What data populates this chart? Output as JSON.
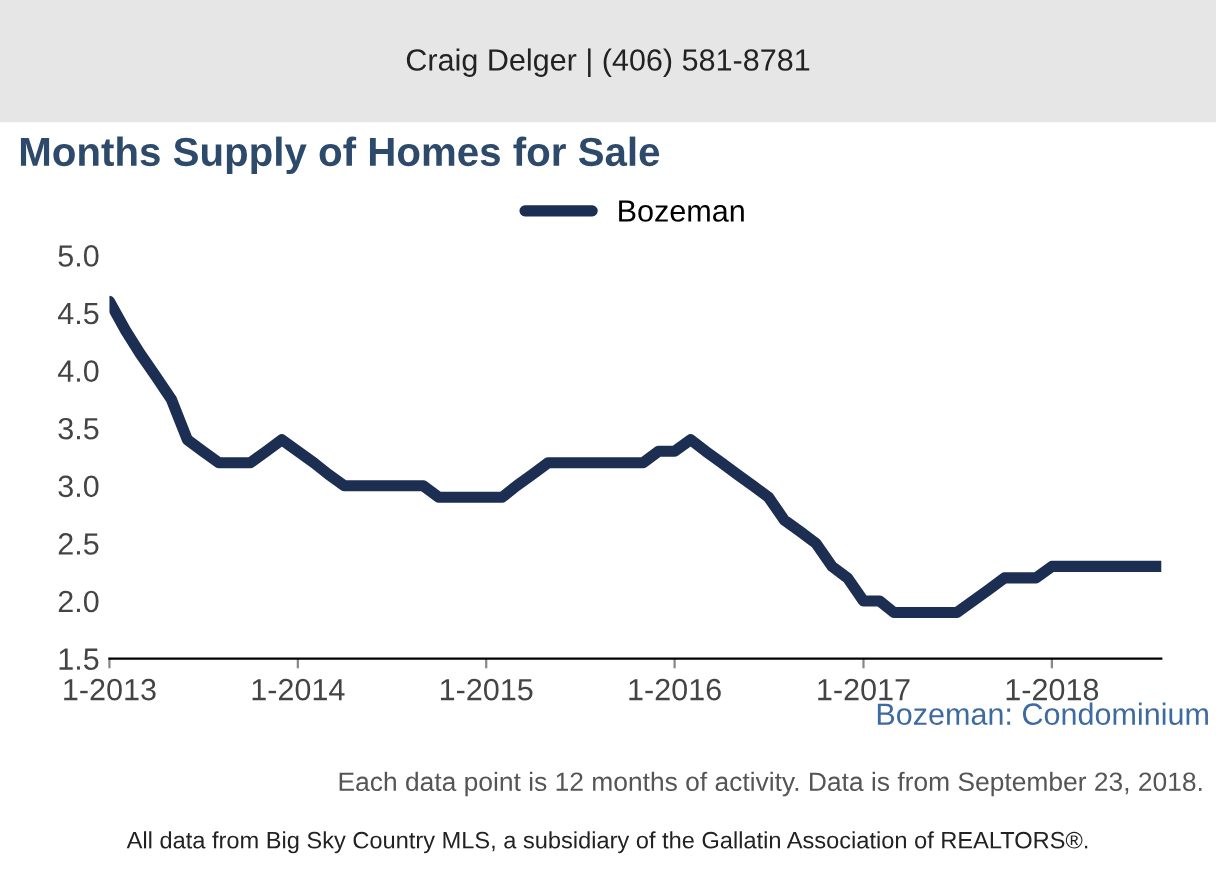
{
  "chart_data": {
    "type": "line",
    "title": "Months Supply of Homes for Sale",
    "annotations": [
      "Craig Delger | (406) 581-8781",
      "Bozeman: Condominium",
      "Each data point is 12 months of activity. Data is from September 23, 2018.",
      "All data from Big Sky Country MLS, a subsidiary of the Gallatin Association of REALTORS®."
    ],
    "x": [
      "2013-01",
      "2013-02",
      "2013-03",
      "2013-04",
      "2013-05",
      "2013-06",
      "2013-07",
      "2013-08",
      "2013-09",
      "2013-10",
      "2013-11",
      "2013-12",
      "2014-01",
      "2014-02",
      "2014-03",
      "2014-04",
      "2014-05",
      "2014-06",
      "2014-07",
      "2014-08",
      "2014-09",
      "2014-10",
      "2014-11",
      "2014-12",
      "2015-01",
      "2015-02",
      "2015-03",
      "2015-04",
      "2015-05",
      "2015-06",
      "2015-07",
      "2015-08",
      "2015-09",
      "2015-10",
      "2015-11",
      "2015-12",
      "2016-01",
      "2016-02",
      "2016-03",
      "2016-04",
      "2016-05",
      "2016-06",
      "2016-07",
      "2016-08",
      "2016-09",
      "2016-10",
      "2016-11",
      "2016-12",
      "2017-01",
      "2017-02",
      "2017-03",
      "2017-04",
      "2017-05",
      "2017-06",
      "2017-07",
      "2017-08",
      "2017-09",
      "2017-10",
      "2017-11",
      "2017-12",
      "2018-01",
      "2018-02",
      "2018-03",
      "2018-04",
      "2018-05",
      "2018-06",
      "2018-07",
      "2018-08"
    ],
    "series": [
      {
        "name": "Bozeman",
        "color": "#1c2f52",
        "values": [
          4.6,
          4.35,
          4.15,
          3.95,
          3.75,
          3.4,
          3.3,
          3.2,
          3.2,
          3.2,
          3.3,
          3.4,
          3.3,
          3.2,
          3.1,
          3.0,
          3.0,
          3.0,
          3.0,
          3.0,
          3.0,
          2.9,
          2.9,
          2.9,
          2.9,
          2.9,
          3.0,
          3.1,
          3.2,
          3.2,
          3.2,
          3.2,
          3.2,
          3.2,
          3.2,
          3.3,
          3.3,
          3.4,
          3.3,
          3.2,
          3.1,
          3.0,
          2.9,
          2.7,
          2.6,
          2.5,
          2.3,
          2.2,
          2.0,
          2.0,
          1.9,
          1.9,
          1.9,
          1.9,
          1.9,
          2.0,
          2.1,
          2.2,
          2.2,
          2.2,
          2.3,
          2.3,
          2.3,
          2.3,
          2.3,
          2.3,
          2.3,
          2.3
        ]
      }
    ],
    "xlim": [
      "2013-01",
      "2018-08"
    ],
    "xticks": [
      {
        "value": "2013-01",
        "label": "1-2013"
      },
      {
        "value": "2014-01",
        "label": "1-2014"
      },
      {
        "value": "2015-01",
        "label": "1-2015"
      },
      {
        "value": "2016-01",
        "label": "1-2016"
      },
      {
        "value": "2017-01",
        "label": "1-2017"
      },
      {
        "value": "2018-01",
        "label": "1-2018"
      }
    ],
    "ylim": [
      1.5,
      5.0
    ],
    "yticks": [
      {
        "value": 1.5,
        "label": "1.5"
      },
      {
        "value": 2.0,
        "label": "2.0"
      },
      {
        "value": 2.5,
        "label": "2.5"
      },
      {
        "value": 3.0,
        "label": "3.0"
      },
      {
        "value": 3.5,
        "label": "3.5"
      },
      {
        "value": 4.0,
        "label": "4.0"
      },
      {
        "value": 4.5,
        "label": "4.5"
      },
      {
        "value": 5.0,
        "label": "5.0"
      }
    ],
    "grid": false,
    "legend": "top",
    "marker": "none",
    "line_style": "solid"
  }
}
